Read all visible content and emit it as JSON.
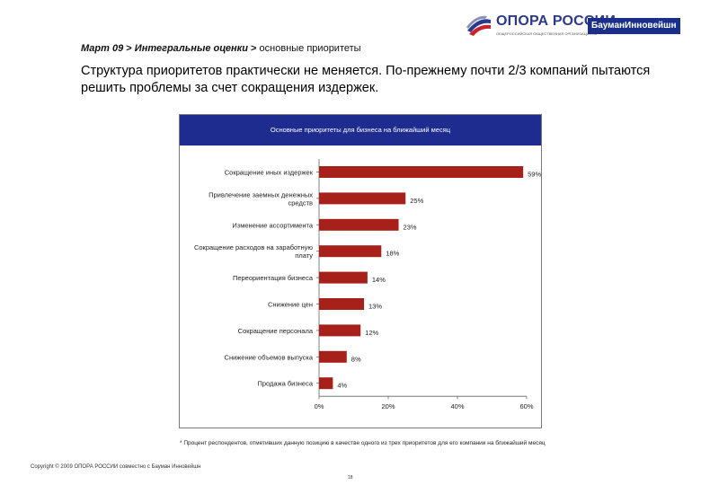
{
  "header": {
    "logo_text": "ОПОРА РОССИИ",
    "logo_subtitle": "ОБЩЕРОССИЙСКАЯ ОБЩЕСТВЕННАЯ ОРГАНИЗАЦИЯ МАЛОГО И СРЕДНЕГО ПРЕДПРИНИМАТЕЛЬСТВА",
    "partner": "БауманИнновейшн"
  },
  "breadcrumb": {
    "part1": "Март 09",
    "sep1": ">",
    "part2": "Интегральные оценки",
    "sep2": ">",
    "part3": "основные приоритеты"
  },
  "headline": "Структура приоритетов практически не меняется. По-прежнему почти 2/3 компаний пытаются решить проблемы за счет сокращения издержек.",
  "chart_data": {
    "type": "bar",
    "orientation": "horizontal",
    "title": "Основные приоритеты для бизнеса на ближайший месяц",
    "categories": [
      [
        "Сокращение иных издержек"
      ],
      [
        "Привлечение заемных денежных",
        "средств"
      ],
      [
        "Изменение ассортимента"
      ],
      [
        "Сокращение расходов на заработную",
        "плату"
      ],
      [
        "Переориентация бизнеса"
      ],
      [
        "Снижение цен"
      ],
      [
        "Сокращение персонала"
      ],
      [
        "Снижение объемов выпуска"
      ],
      [
        "Продажа бизнеса"
      ]
    ],
    "values": [
      59,
      25,
      23,
      18,
      14,
      13,
      12,
      8,
      4
    ],
    "value_labels": [
      "59%*",
      "25%",
      "23%",
      "18%",
      "14%",
      "13%",
      "12%",
      "8%",
      "4%"
    ],
    "xlim": [
      0,
      60
    ],
    "xticks": [
      "0%",
      "20%",
      "40%",
      "60%"
    ],
    "bar_color": "#a8201a",
    "grid": false,
    "legend": "none"
  },
  "footnote": "* Процент респондентов, отметивших данную позицию в качестве одного из трех приоритетов для его компании на ближайший месяц",
  "copyright": "Copyright © 2009 ОПОРА РОССИИ совместно с Бауман Инновейшн",
  "page_number": "18"
}
